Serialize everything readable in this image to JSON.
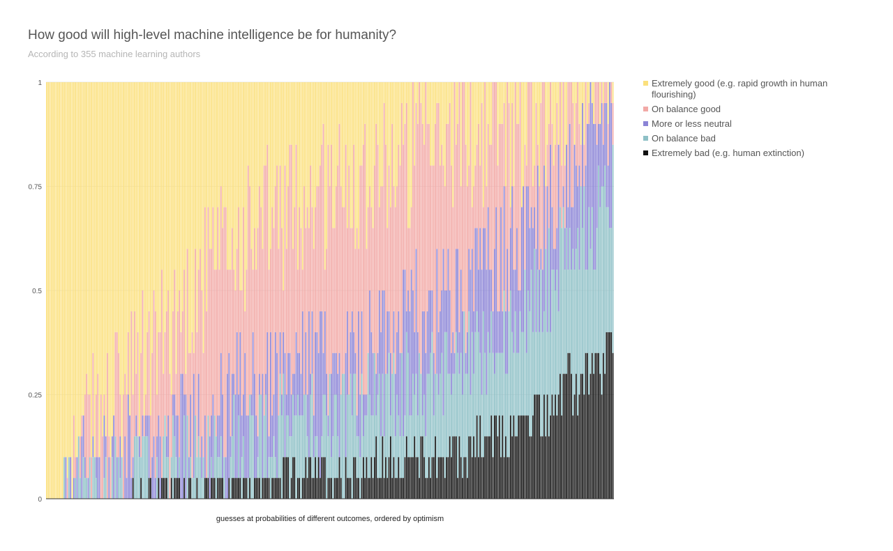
{
  "chart_data": {
    "type": "bar",
    "stacked": true,
    "title": "How good will high-level machine intelligence be for humanity?",
    "subtitle": "According to 355 machine learning authors",
    "xlabel": "guesses at probabilities of different outcomes, ordered by optimism",
    "ylabel": "",
    "ylim": [
      0,
      1
    ],
    "yticks": [
      "0",
      "0.25",
      "0.5",
      "0.75",
      "1"
    ],
    "n_bars": 355,
    "grid": true,
    "legend_position": "right",
    "series": [
      {
        "name": "Extremely good (e.g. rapid growth in human flourishing)",
        "color": "#fbe07d"
      },
      {
        "name": "On balance good",
        "color": "#f2a9a6"
      },
      {
        "name": "More or less neutral",
        "color": "#8b84d6"
      },
      {
        "name": "On balance bad",
        "color": "#8ec0c6"
      },
      {
        "name": "Extremely bad (e.g. human extinction)",
        "color": "#111111"
      }
    ],
    "trend_anchors": {
      "position": [
        0,
        0.15,
        0.3,
        0.5,
        0.7,
        0.85,
        1
      ],
      "extremely_bad_cumulative": [
        0,
        0.01,
        0.03,
        0.06,
        0.1,
        0.18,
        0.35
      ],
      "on_balance_bad_cumulative": [
        0,
        0.04,
        0.12,
        0.2,
        0.3,
        0.45,
        0.75
      ],
      "neutral_cumulative": [
        0,
        0.1,
        0.22,
        0.33,
        0.47,
        0.65,
        0.9
      ],
      "good_cumulative": [
        0,
        0.28,
        0.58,
        0.75,
        0.85,
        0.9,
        1
      ]
    }
  }
}
